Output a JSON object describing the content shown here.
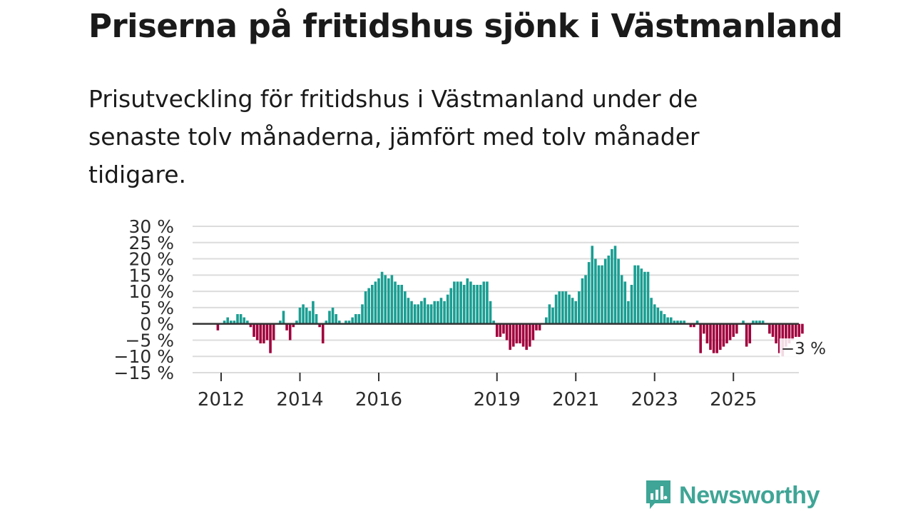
{
  "header": {
    "title": "Priserna på fritidshus sjönk i Västmanland",
    "subtitle": "Prisutveckling för fritidshus i Västmanland under de senaste tolv månaderna, jämfört med tolv månader tidigare."
  },
  "chart_data": {
    "type": "bar",
    "ylim": [
      -15,
      30
    ],
    "yticks": [
      30,
      25,
      20,
      15,
      10,
      5,
      0,
      -5,
      -10,
      -15
    ],
    "ytick_labels": [
      "30 %",
      "25 %",
      "20 %",
      "15 %",
      "10 %",
      "5 %",
      "0 %",
      "−5 %",
      "−10 %",
      "−15 %"
    ],
    "xticks": [
      {
        "label": "2012",
        "index": 0
      },
      {
        "label": "2014",
        "index": 24
      },
      {
        "label": "2016",
        "index": 48
      },
      {
        "label": "2019",
        "index": 84
      },
      {
        "label": "2021",
        "index": 108
      },
      {
        "label": "2023",
        "index": 132
      },
      {
        "label": "2025",
        "index": 156
      }
    ],
    "start_index": -1,
    "values": [
      -2,
      0,
      1,
      2,
      1,
      1,
      3,
      3,
      2,
      1,
      -1,
      -4,
      -5,
      -6,
      -6,
      -5,
      -9,
      -5,
      0,
      1,
      4,
      -2,
      -5,
      -1,
      1,
      5,
      6,
      5,
      4,
      7,
      3,
      -1,
      -6,
      1,
      4,
      5,
      3,
      1,
      0,
      1,
      1,
      2,
      3,
      3,
      6,
      10,
      11,
      12,
      13,
      14,
      16,
      15,
      14,
      15,
      13,
      12,
      12,
      10,
      8,
      7,
      6,
      6,
      7,
      8,
      6,
      6,
      7,
      7,
      8,
      7,
      9,
      11,
      13,
      13,
      13,
      12,
      14,
      13,
      12,
      12,
      12,
      13,
      13,
      7,
      1,
      -4,
      -4,
      -3,
      -5,
      -8,
      -7,
      -6,
      -6,
      -7,
      -8,
      -7,
      -5,
      -2,
      -2,
      0,
      2,
      6,
      5,
      9,
      10,
      10,
      10,
      9,
      8,
      7,
      10,
      14,
      15,
      19,
      24,
      20,
      18,
      18,
      20,
      21,
      23,
      24,
      20,
      15,
      13,
      7,
      12,
      18,
      18,
      17,
      16,
      16,
      8,
      6,
      5,
      4,
      3,
      2,
      2,
      1,
      1,
      1,
      1,
      0,
      -1,
      -1,
      1,
      -9,
      -3,
      -6,
      -8,
      -9,
      -9,
      -8,
      -7,
      -6,
      -5,
      -4,
      -3,
      0,
      1,
      -7,
      -6,
      1,
      1,
      1,
      1,
      0,
      -3,
      -4,
      -6,
      -9,
      -10,
      -7,
      -6,
      -5,
      -4,
      -4,
      -3
    ],
    "positive_color": "#1a9e92",
    "negative_color": "#a0003c",
    "last_label": "−3 %"
  },
  "brand": {
    "name": "Newsworthy"
  }
}
